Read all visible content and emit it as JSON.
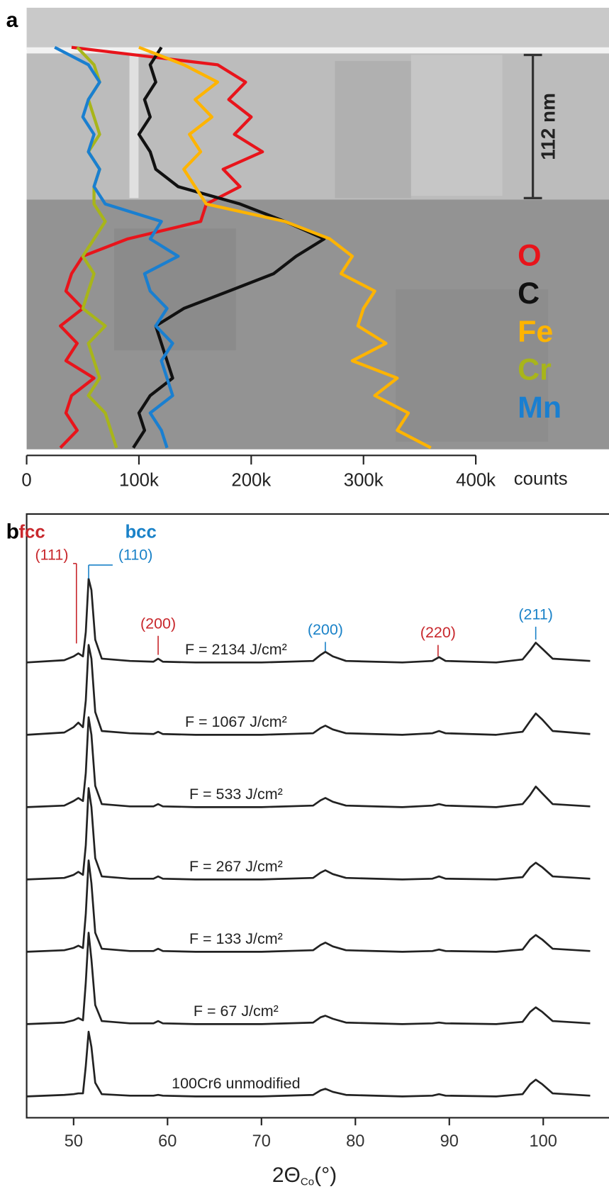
{
  "chart_data": [
    {
      "type": "profile",
      "panel": "a",
      "xlabel": "counts",
      "xlim": [
        0,
        400000
      ],
      "xticks": [
        0,
        {
          "value": 100000,
          "label": "100k"
        },
        {
          "value": 200000,
          "label": "200k"
        },
        {
          "value": 300000,
          "label": "300k"
        },
        {
          "value": 400000,
          "label": "400k"
        }
      ],
      "scalebar": "112 nm",
      "legend": "right",
      "series": [
        {
          "name": "O",
          "color": "#e8141b",
          "values": [
            40000,
            170000,
            195000,
            180000,
            200000,
            185000,
            210000,
            175000,
            190000,
            160000,
            155000,
            90000,
            50000,
            40000,
            35000,
            50000,
            30000,
            45000,
            35000,
            60000,
            40000,
            35000,
            45000,
            30000
          ]
        },
        {
          "name": "C",
          "color": "#111111",
          "values": [
            120000,
            110000,
            115000,
            105000,
            110000,
            100000,
            110000,
            115000,
            135000,
            190000,
            230000,
            265000,
            240000,
            220000,
            180000,
            140000,
            115000,
            120000,
            125000,
            130000,
            110000,
            100000,
            105000,
            95000
          ]
        },
        {
          "name": "Fe",
          "color": "#ffb400",
          "values": [
            100000,
            140000,
            170000,
            150000,
            165000,
            145000,
            155000,
            140000,
            150000,
            160000,
            230000,
            270000,
            290000,
            280000,
            310000,
            300000,
            295000,
            320000,
            290000,
            330000,
            310000,
            340000,
            330000,
            360000
          ]
        },
        {
          "name": "Cr",
          "color": "#a8b51a",
          "values": [
            45000,
            60000,
            65000,
            55000,
            60000,
            65000,
            55000,
            65000,
            60000,
            60000,
            70000,
            60000,
            50000,
            60000,
            55000,
            50000,
            70000,
            55000,
            60000,
            65000,
            55000,
            70000,
            75000,
            80000
          ]
        },
        {
          "name": "Mn",
          "color": "#1a7fd0",
          "values": [
            25000,
            55000,
            65000,
            55000,
            50000,
            60000,
            55000,
            65000,
            60000,
            70000,
            120000,
            110000,
            135000,
            105000,
            110000,
            125000,
            115000,
            130000,
            120000,
            125000,
            130000,
            110000,
            120000,
            125000
          ]
        }
      ]
    },
    {
      "type": "line",
      "panel": "b",
      "xlabel": [
        "2Θ",
        "Co",
        "(°)"
      ],
      "xlim": [
        45,
        107
      ],
      "xticks": [
        50,
        60,
        70,
        80,
        90,
        100
      ],
      "phases": [
        {
          "label": "fcc",
          "color": "#c8282d"
        },
        {
          "label": "bcc",
          "color": "#1a82c8"
        }
      ],
      "peaks": [
        {
          "label": "(111)",
          "x": 50.3,
          "color": "#c8282d"
        },
        {
          "label": "(110)",
          "x": 51.6,
          "color": "#1a82c8"
        },
        {
          "label": "(200)",
          "x": 59,
          "color": "#c8282d"
        },
        {
          "label": "(200)",
          "x": 76.8,
          "color": "#1a82c8"
        },
        {
          "label": "(220)",
          "x": 88.8,
          "color": "#c8282d"
        },
        {
          "label": "(211)",
          "x": 99.2,
          "color": "#1a82c8"
        }
      ],
      "x": [
        45,
        49,
        50,
        50.5,
        51,
        51.3,
        51.6,
        51.9,
        52.3,
        53,
        56,
        58.5,
        59,
        59.5,
        63,
        70,
        75.5,
        76.3,
        76.8,
        77.6,
        79,
        85,
        88.2,
        88.9,
        89.6,
        95,
        97.8,
        98.6,
        99.2,
        99.9,
        101,
        105
      ],
      "series": [
        {
          "name": "F = 2134 J/cm²",
          "color": "#222222",
          "values": [
            0,
            3,
            8,
            12,
            8,
            40,
            110,
            95,
            30,
            5,
            2,
            1,
            5,
            1,
            0,
            0,
            2,
            10,
            14,
            8,
            2,
            0,
            2,
            7,
            2,
            0,
            4,
            16,
            26,
            18,
            5,
            2
          ]
        },
        {
          "name": "F = 1067 J/cm²",
          "color": "#222222",
          "values": [
            0,
            3,
            10,
            16,
            10,
            45,
            118,
            100,
            30,
            5,
            2,
            1,
            4,
            1,
            0,
            0,
            2,
            9,
            12,
            7,
            2,
            0,
            2,
            5,
            2,
            0,
            4,
            18,
            28,
            20,
            5,
            1
          ]
        },
        {
          "name": "F = 533 J/cm²",
          "color": "#222222",
          "values": [
            0,
            2,
            8,
            12,
            8,
            45,
            118,
            95,
            28,
            4,
            1,
            1,
            4,
            1,
            0,
            0,
            2,
            9,
            12,
            7,
            2,
            0,
            2,
            4,
            2,
            0,
            4,
            16,
            27,
            18,
            4,
            1
          ]
        },
        {
          "name": "F = 267 J/cm²",
          "color": "#222222",
          "values": [
            0,
            2,
            6,
            10,
            6,
            45,
            120,
            95,
            28,
            4,
            1,
            1,
            4,
            1,
            0,
            0,
            2,
            9,
            12,
            7,
            2,
            0,
            1,
            4,
            1,
            0,
            3,
            16,
            22,
            16,
            4,
            1
          ]
        },
        {
          "name": "F = 133 J/cm²",
          "color": "#222222",
          "values": [
            0,
            2,
            5,
            8,
            5,
            50,
            120,
            90,
            25,
            4,
            1,
            1,
            4,
            1,
            0,
            0,
            2,
            9,
            12,
            7,
            2,
            0,
            1,
            3,
            1,
            0,
            3,
            16,
            22,
            16,
            4,
            1
          ]
        },
        {
          "name": "F = 67 J/cm²",
          "color": "#222222",
          "values": [
            0,
            2,
            5,
            8,
            5,
            55,
            120,
            85,
            25,
            4,
            1,
            1,
            4,
            1,
            0,
            0,
            2,
            9,
            11,
            7,
            2,
            0,
            1,
            2,
            1,
            0,
            3,
            16,
            22,
            16,
            4,
            1
          ]
        },
        {
          "name": "100Cr6 unmodified",
          "color": "#222222",
          "values": [
            0,
            2,
            3,
            4,
            4,
            40,
            85,
            65,
            18,
            3,
            1,
            1,
            2,
            1,
            0,
            0,
            2,
            8,
            10,
            6,
            2,
            0,
            1,
            3,
            1,
            0,
            3,
            16,
            22,
            16,
            4,
            1
          ]
        }
      ]
    }
  ]
}
